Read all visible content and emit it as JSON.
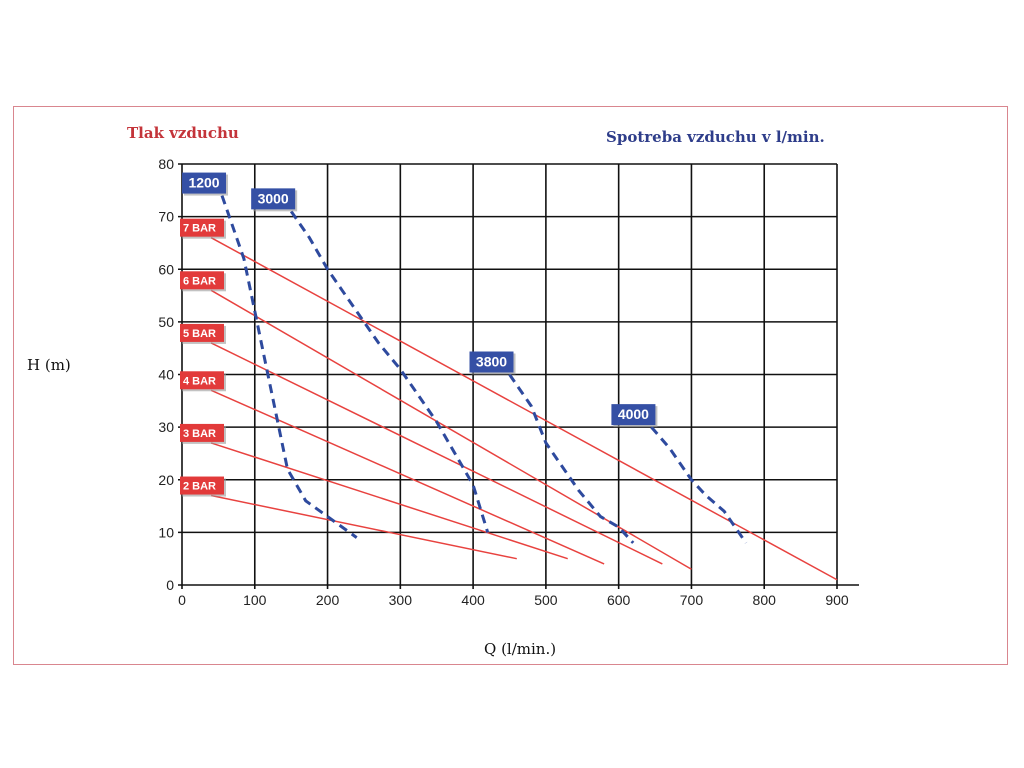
{
  "labels": {
    "pressure_title": "Tlak vzduchu",
    "consumption_title": "Spotreba vzduchu v l/min.",
    "ylabel": "H (m)",
    "xlabel": "Q (l/min.)"
  },
  "colors": {
    "pressure_line": "#e8423f",
    "pressure_badge": "#e23a3a",
    "consumption_line": "#2e4a9e",
    "consumption_badge": "#3550a5",
    "grid": "#111111",
    "frame": "#d9868f"
  },
  "chart_data": {
    "type": "line",
    "xlim": [
      0,
      900
    ],
    "ylim": [
      0,
      80
    ],
    "x_ticks": [
      0,
      100,
      200,
      300,
      400,
      500,
      600,
      700,
      800,
      900
    ],
    "y_ticks": [
      0,
      10,
      20,
      30,
      40,
      50,
      60,
      70,
      80
    ],
    "grid": true,
    "pressure_series": [
      {
        "name": "7 BAR",
        "points": [
          [
            40,
            66
          ],
          [
            900,
            1
          ]
        ]
      },
      {
        "name": "6 BAR",
        "points": [
          [
            40,
            56
          ],
          [
            700,
            3
          ]
        ]
      },
      {
        "name": "5 BAR",
        "points": [
          [
            40,
            46
          ],
          [
            660,
            4
          ]
        ]
      },
      {
        "name": "4 BAR",
        "points": [
          [
            40,
            37
          ],
          [
            580,
            4
          ]
        ]
      },
      {
        "name": "3 BAR",
        "points": [
          [
            40,
            27
          ],
          [
            530,
            5
          ]
        ]
      },
      {
        "name": "2 BAR",
        "points": [
          [
            40,
            17
          ],
          [
            460,
            5
          ]
        ]
      }
    ],
    "consumption_series": [
      {
        "name": "1200",
        "points": [
          [
            55,
            74
          ],
          [
            65,
            70
          ],
          [
            85,
            62
          ],
          [
            100,
            52
          ],
          [
            115,
            42
          ],
          [
            130,
            32
          ],
          [
            145,
            22
          ],
          [
            170,
            16
          ],
          [
            200,
            13
          ],
          [
            240,
            9
          ]
        ]
      },
      {
        "name": "3000",
        "points": [
          [
            150,
            71
          ],
          [
            175,
            66
          ],
          [
            200,
            60
          ],
          [
            220,
            56
          ],
          [
            245,
            51
          ],
          [
            270,
            46
          ],
          [
            300,
            41
          ],
          [
            325,
            36
          ],
          [
            350,
            31
          ],
          [
            375,
            25
          ],
          [
            400,
            19
          ],
          [
            420,
            10
          ]
        ]
      },
      {
        "name": "3800",
        "points": [
          [
            450,
            40
          ],
          [
            480,
            34
          ],
          [
            500,
            27
          ],
          [
            520,
            23
          ],
          [
            545,
            18
          ],
          [
            575,
            13
          ],
          [
            600,
            11
          ],
          [
            620,
            8
          ]
        ]
      },
      {
        "name": "4000",
        "points": [
          [
            645,
            30
          ],
          [
            670,
            26
          ],
          [
            700,
            20
          ],
          [
            720,
            17
          ],
          [
            745,
            14
          ],
          [
            760,
            11
          ],
          [
            775,
            8
          ]
        ]
      }
    ]
  }
}
